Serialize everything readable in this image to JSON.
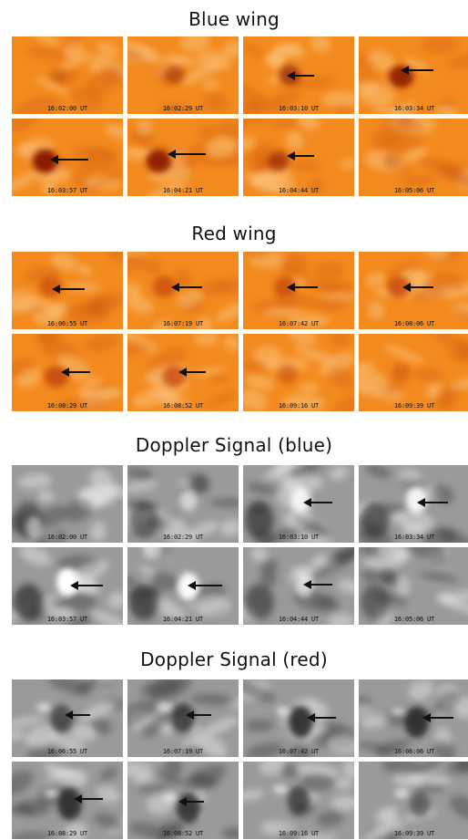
{
  "sections": [
    {
      "title": "Blue wing",
      "kind": "orange",
      "timestamps": [
        "16:02:00 UT",
        "16:02:29 UT",
        "16:03:10 UT",
        "16:03:34 UT",
        "16:03:57 UT",
        "16:04:21 UT",
        "16:04:44 UT",
        "16:05:06 UT"
      ]
    },
    {
      "title": "Red wing",
      "kind": "orange",
      "timestamps": [
        "16:06:55 UT",
        "16:07:19 UT",
        "16:07:42 UT",
        "16:08:06 UT",
        "16:08:29 UT",
        "16:08:52 UT",
        "16:09:16 UT",
        "16:09:39 UT"
      ]
    },
    {
      "title": "Doppler Signal (blue)",
      "kind": "gray",
      "timestamps": [
        "16:02:00 UT",
        "16:02:29 UT",
        "16:03:10 UT",
        "16:03:34 UT",
        "16:03:57 UT",
        "16:04:21 UT",
        "16:04:44 UT",
        "16:05:06 UT"
      ]
    },
    {
      "title": "Doppler Signal (red)",
      "kind": "gray",
      "timestamps": [
        "16:06:55 UT",
        "16:07:19 UT",
        "16:07:42 UT",
        "16:08:06 UT",
        "16:08:29 UT",
        "16:08:52 UT",
        "16:09:16 UT",
        "16:09:39 UT"
      ]
    }
  ],
  "colors": {
    "orange_base": "#f28a1e",
    "orange_light": "#fbc27a",
    "orange_dark": "#c6480c",
    "gray_base": "#9a9a9a",
    "gray_light": "#e6e6e6",
    "gray_dark": "#2a2a2a",
    "arrow": "#111111"
  }
}
